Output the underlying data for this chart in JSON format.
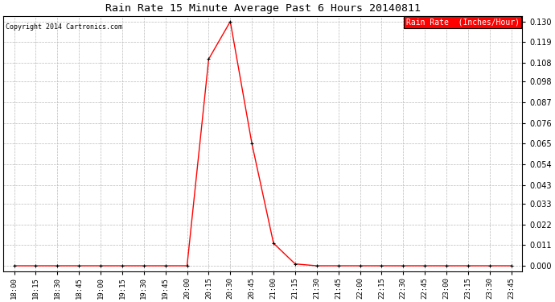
{
  "title": "Rain Rate 15 Minute Average Past 6 Hours 20140811",
  "copyright": "Copyright 2014 Cartronics.com",
  "legend_label": "Rain Rate  (Inches/Hour)",
  "legend_bg": "#ff0000",
  "legend_text_color": "#ffffff",
  "line_color": "#ff0000",
  "marker_color": "#000000",
  "background_color": "#ffffff",
  "grid_color": "#bbbbbb",
  "yticks": [
    0.0,
    0.011,
    0.022,
    0.033,
    0.043,
    0.054,
    0.065,
    0.076,
    0.087,
    0.098,
    0.108,
    0.119,
    0.13
  ],
  "time_labels": [
    "18:00",
    "18:15",
    "18:30",
    "18:45",
    "19:00",
    "19:15",
    "19:30",
    "19:45",
    "20:00",
    "20:15",
    "20:30",
    "20:45",
    "21:00",
    "21:15",
    "21:30",
    "21:45",
    "22:00",
    "22:15",
    "22:30",
    "22:45",
    "23:00",
    "23:15",
    "23:30",
    "23:45"
  ],
  "x_values": [
    0,
    1,
    2,
    3,
    4,
    5,
    6,
    7,
    8,
    9,
    10,
    11,
    12,
    13,
    14,
    15,
    16,
    17,
    18,
    19,
    20,
    21,
    22,
    23
  ],
  "y_values": [
    0,
    0,
    0,
    0,
    0,
    0,
    0,
    0,
    0,
    0.11,
    0.13,
    0.065,
    0.012,
    0.001,
    0,
    0,
    0,
    0,
    0,
    0,
    0,
    0,
    0,
    0
  ]
}
